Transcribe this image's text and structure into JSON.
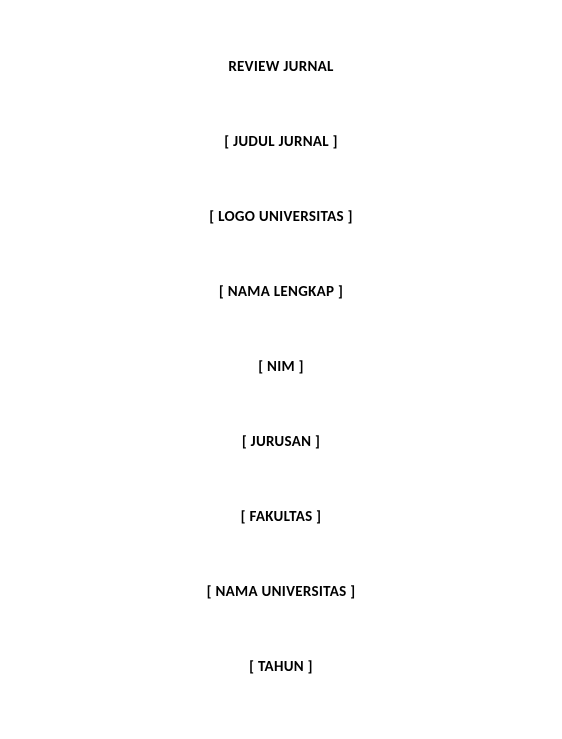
{
  "document": {
    "title": "REVIEW JURNAL",
    "fields": [
      "[ JUDUL JURNAL ]",
      "[ LOGO UNIVERSITAS ]",
      "[ NAMA LENGKAP ]",
      "[ NIM ]",
      "[ JURUSAN ]",
      "[ FAKULTAS ]",
      "[ NAMA UNIVERSITAS ]",
      "[ TAHUN ]"
    ],
    "style": {
      "background_color": "#ffffff",
      "text_color": "#000000",
      "font_weight": "bold",
      "font_size": 15,
      "text_align": "center"
    }
  }
}
